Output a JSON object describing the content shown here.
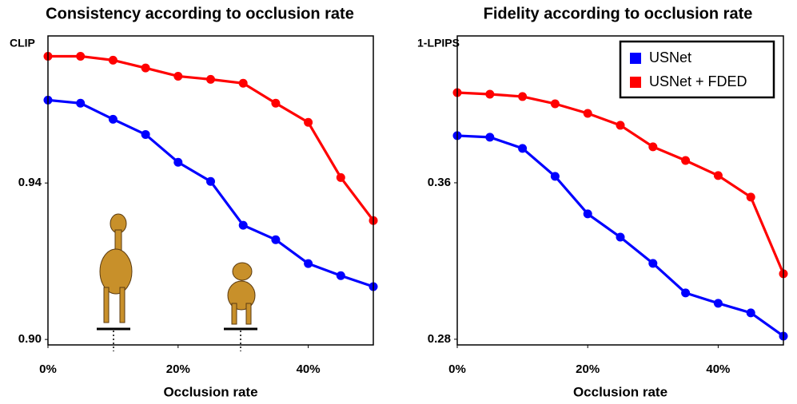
{
  "chart_data": [
    {
      "type": "line",
      "title": "Consistency according to occlusion rate",
      "ylabel": "CLIP",
      "xlabel": "Occlusion rate",
      "x": [
        0,
        5,
        10,
        15,
        20,
        25,
        30,
        35,
        40,
        45,
        50
      ],
      "series": [
        {
          "color": "#0000ff",
          "values": [
            0.9612,
            0.9604,
            0.9563,
            0.9524,
            0.9453,
            0.9404,
            0.9292,
            0.9255,
            0.9194,
            0.9163,
            0.9135
          ]
        },
        {
          "color": "#ff0000",
          "values": [
            0.9724,
            0.9724,
            0.9714,
            0.9694,
            0.9673,
            0.9665,
            0.9655,
            0.9604,
            0.9555,
            0.9414,
            0.9304
          ]
        }
      ],
      "xlim": [
        0,
        50
      ],
      "xticks": [
        {
          "value": 0,
          "label": "0%"
        },
        {
          "value": 20,
          "label": "20%"
        },
        {
          "value": 40,
          "label": "40%"
        }
      ],
      "ylim": [
        0.8986,
        0.9776
      ],
      "yticks": [
        {
          "value": 0.9,
          "label": "0.90"
        },
        0.94
      ]
    },
    {
      "type": "line",
      "title": "Fidelity according to occlusion rate",
      "ylabel": "1-LPIPS",
      "xlabel": "Occlusion rate",
      "x": [
        0,
        5,
        10,
        15,
        20,
        25,
        30,
        35,
        40,
        45,
        50
      ],
      "series": [
        {
          "name": "USNet",
          "color": "#0000ff",
          "values": [
            0.3841,
            0.3833,
            0.3776,
            0.3633,
            0.3441,
            0.3322,
            0.3188,
            0.3037,
            0.2984,
            0.2935,
            0.2816
          ]
        },
        {
          "name": "USNet + FDED",
          "color": "#ff0000",
          "values": [
            0.4061,
            0.4053,
            0.4041,
            0.4004,
            0.3955,
            0.3894,
            0.3784,
            0.3714,
            0.3637,
            0.3527,
            0.3135
          ]
        }
      ],
      "xlim": [
        0,
        50
      ],
      "xticks": [
        {
          "value": 0,
          "label": "0%"
        },
        {
          "value": 20,
          "label": "20%"
        },
        {
          "value": 40,
          "label": "40%"
        }
      ],
      "ylim": [
        0.2771,
        0.4351
      ],
      "yticks": [
        0.28,
        0.36
      ],
      "legend": "upper right"
    }
  ]
}
